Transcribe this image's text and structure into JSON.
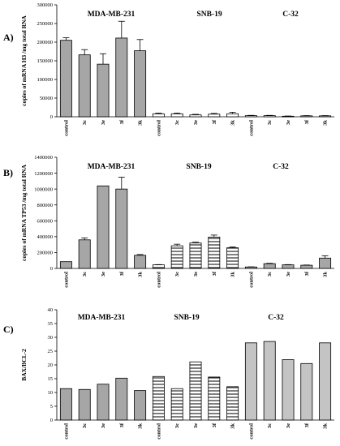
{
  "chart_data": [
    {
      "type": "bar",
      "panel": "A)",
      "ylabel": "copies of mRNA H3 /mg total RNA",
      "ylim": [
        0,
        300000
      ],
      "yticks": [
        "0",
        "50000",
        "100000",
        "150000",
        "200000",
        "250000",
        "300000"
      ],
      "categories": [
        "control",
        "3c",
        "3e",
        "3f",
        "3k",
        "control",
        "3c",
        "3e",
        "3f",
        "3k",
        "control",
        "3c",
        "3e",
        "3f",
        "3k"
      ],
      "groups": [
        {
          "label": "MDA-MB-231",
          "start": 0,
          "count": 5,
          "fill": "gray"
        },
        {
          "label": "SNB-19",
          "start": 5,
          "count": 5,
          "fill": "white"
        },
        {
          "label": "C-32",
          "start": 10,
          "count": 5,
          "fill": "white"
        }
      ],
      "values": [
        205000,
        166000,
        141000,
        211000,
        177000,
        8000,
        8000,
        5000,
        7000,
        8000,
        3000,
        3000,
        1500,
        2500,
        2500
      ],
      "errors": [
        7000,
        14000,
        28000,
        45000,
        30000,
        2000,
        2000,
        1500,
        2000,
        4000,
        800,
        800,
        500,
        600,
        600
      ],
      "grid": false
    },
    {
      "type": "bar",
      "panel": "B)",
      "ylabel": "copies of mRNA TP53 /mg total RNA",
      "ylim": [
        0,
        1400000
      ],
      "yticks": [
        "0",
        "200000",
        "400000",
        "600000",
        "800000",
        "1000000",
        "1200000",
        "1400000"
      ],
      "categories": [
        "control",
        "3c",
        "3e",
        "3f",
        "3k",
        "control",
        "3c",
        "3e",
        "3f",
        "3k",
        "control",
        "3c",
        "3e",
        "3f",
        "3k"
      ],
      "groups": [
        {
          "label": "MDA-MB-231",
          "start": 0,
          "count": 5,
          "fill": "gray"
        },
        {
          "label": "SNB-19",
          "start": 5,
          "count": 5,
          "fill": "hatch"
        },
        {
          "label": "C-32",
          "start": 10,
          "count": 5,
          "fill": "gray"
        }
      ],
      "values": [
        85000,
        360000,
        1040000,
        1000000,
        165000,
        45000,
        285000,
        320000,
        395000,
        260000,
        18000,
        60000,
        45000,
        40000,
        130000
      ],
      "errors": [
        0,
        25000,
        0,
        150000,
        10000,
        3000,
        20000,
        10000,
        25000,
        10000,
        2000,
        5000,
        3000,
        3000,
        30000
      ],
      "grid": false
    },
    {
      "type": "bar",
      "panel": "C)",
      "ylabel": "BAX/BCL-2",
      "ylim": [
        0,
        40
      ],
      "yticks": [
        "0",
        "5",
        "10",
        "15",
        "20",
        "25",
        "30",
        "35",
        "40"
      ],
      "categories": [
        "control",
        "3c",
        "3e",
        "3f",
        "3k",
        "control",
        "3c",
        "3e",
        "3f",
        "3k",
        "control",
        "3c",
        "3e",
        "3f",
        "3k"
      ],
      "groups": [
        {
          "label": "MDA-MB-231",
          "start": 0,
          "count": 5,
          "fill": "gray"
        },
        {
          "label": "SNB-19",
          "start": 5,
          "count": 5,
          "fill": "hatch"
        },
        {
          "label": "C-32",
          "start": 10,
          "count": 5,
          "fill": "lightgray"
        }
      ],
      "values": [
        11.4,
        11.1,
        13.0,
        15.2,
        10.7,
        15.8,
        11.4,
        21.1,
        15.6,
        12.1,
        28.0,
        28.5,
        21.9,
        20.5,
        28.0
      ],
      "errors": [],
      "grid": false
    }
  ],
  "colors": {
    "gray": "#a6a6a6",
    "lightgray": "#c4c4c4",
    "white": "#ffffff",
    "hatch_line": "#000000"
  }
}
